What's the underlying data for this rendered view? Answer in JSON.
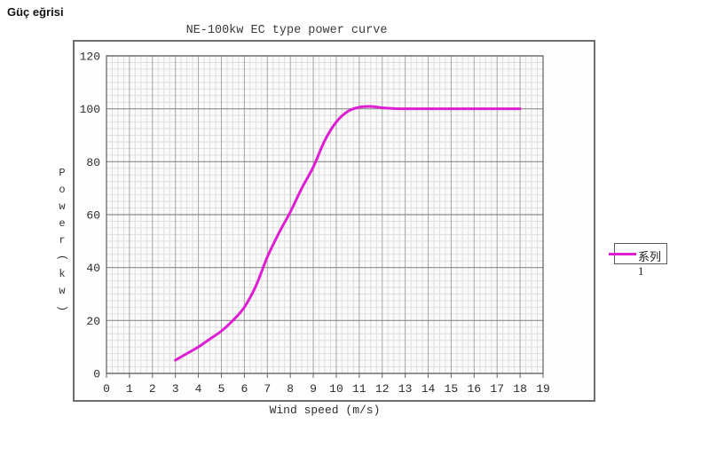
{
  "heading": "Güç eğrisi",
  "colors": {
    "curve": "#de1ed2",
    "grid_minor": "#dedede",
    "grid_major_v": "#a6a6a6",
    "grid_major_h": "#8c8c8c",
    "plot_border": "#5f5f5f",
    "frame_border": "#6e6e6e",
    "plot_background": "#fbfbfb"
  },
  "chart_data": {
    "type": "line",
    "title": "NE-100kw EC type power curve",
    "xlabel": "Wind speed (m/s)",
    "ylabel": "Power(kw)",
    "ylabel_vertical_chars": [
      "P",
      "o",
      "w",
      "e",
      "r",
      "(",
      "k",
      "w",
      ")"
    ],
    "xlim": [
      0,
      19
    ],
    "ylim": [
      0,
      120
    ],
    "x_major_step": 1,
    "y_major_step": 20,
    "x_minor_step": 0.25,
    "y_minor_step": 2.5,
    "x_ticks": [
      0,
      1,
      2,
      3,
      4,
      5,
      6,
      7,
      8,
      9,
      10,
      11,
      12,
      13,
      14,
      15,
      16,
      17,
      18,
      19
    ],
    "y_ticks": [
      0,
      20,
      40,
      60,
      80,
      100,
      120
    ],
    "grid": "major+minor",
    "legend_position": "right-middle",
    "series": [
      {
        "name": "系列1",
        "color": "#de1ed2",
        "points": [
          [
            3,
            5
          ],
          [
            3.5,
            7.5
          ],
          [
            4,
            10
          ],
          [
            4.5,
            13
          ],
          [
            5,
            16
          ],
          [
            5.5,
            20
          ],
          [
            6,
            25
          ],
          [
            6.5,
            33
          ],
          [
            7,
            44
          ],
          [
            7.5,
            53
          ],
          [
            8,
            61
          ],
          [
            8.5,
            70
          ],
          [
            9,
            78
          ],
          [
            9.5,
            88
          ],
          [
            10,
            95
          ],
          [
            10.5,
            99
          ],
          [
            11,
            100.6
          ],
          [
            11.5,
            100.9
          ],
          [
            12,
            100.4
          ],
          [
            12.5,
            100.1
          ],
          [
            13,
            100
          ],
          [
            14,
            100
          ],
          [
            15,
            100
          ],
          [
            16,
            100
          ],
          [
            17,
            100
          ],
          [
            18,
            100
          ]
        ]
      }
    ]
  }
}
